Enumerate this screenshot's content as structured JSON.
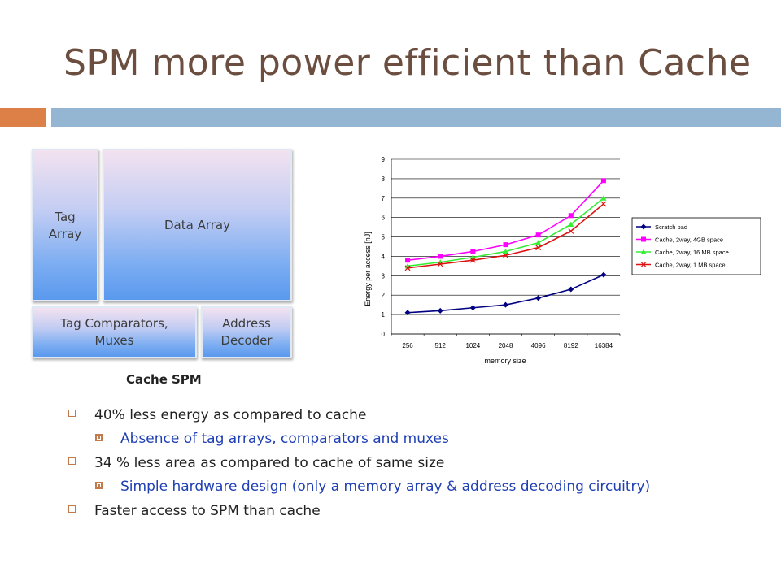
{
  "title": "SPM more power efficient than Cache",
  "diagram": {
    "tag_array": [
      "Tag",
      "Array"
    ],
    "data_array": "Data Array",
    "tag_comparators": [
      "Tag Comparators,",
      "Muxes"
    ],
    "address_decoder": [
      "Address",
      "Decoder"
    ],
    "cache_label": "Cache",
    "spm_label": "SPM"
  },
  "bullets": [
    {
      "level": 1,
      "text": "40% less energy as compared to cache"
    },
    {
      "level": 2,
      "text": "Absence of tag arrays, comparators and muxes"
    },
    {
      "level": 1,
      "text": "34 % less area as compared to cache of same size"
    },
    {
      "level": 2,
      "text": "Simple hardware design (only a memory array & address decoding circuitry)"
    },
    {
      "level": 1,
      "text": "Faster access to SPM than cache"
    }
  ],
  "colors": {
    "title": "#6b4e3f",
    "band_orange": "#dd8047",
    "band_blue": "#94b6d2",
    "level2_text": "#1f3fb5"
  },
  "chart_data": {
    "type": "line",
    "xlabel": "memory size",
    "ylabel": "Energy per access [nJ]",
    "categories": [
      "256",
      "512",
      "1024",
      "2048",
      "4096",
      "8192",
      "16384"
    ],
    "ylim": [
      0,
      9
    ],
    "yticks": [
      "0",
      "1",
      "2",
      "3",
      "4",
      "5",
      "6",
      "7",
      "8",
      "9"
    ],
    "grid": true,
    "legend_position": "right",
    "series": [
      {
        "name": "Scratch pad",
        "color": "#000080",
        "marker": "diamond",
        "values": [
          1.1,
          1.2,
          1.35,
          1.5,
          1.85,
          2.3,
          3.05
        ]
      },
      {
        "name": "Cache, 2way, 4GB space",
        "color": "#ff00ff",
        "marker": "square",
        "values": [
          3.8,
          4.0,
          4.25,
          4.6,
          5.1,
          6.1,
          7.9
        ]
      },
      {
        "name": "Cache, 2way, 16 MB space",
        "color": "#33ee33",
        "marker": "triangle",
        "values": [
          3.5,
          3.7,
          3.95,
          4.25,
          4.7,
          5.65,
          7.0
        ]
      },
      {
        "name": "Cache, 2way, 1 MB space",
        "color": "#dd1111",
        "marker": "x",
        "values": [
          3.4,
          3.6,
          3.8,
          4.05,
          4.45,
          5.3,
          6.7
        ]
      }
    ]
  }
}
